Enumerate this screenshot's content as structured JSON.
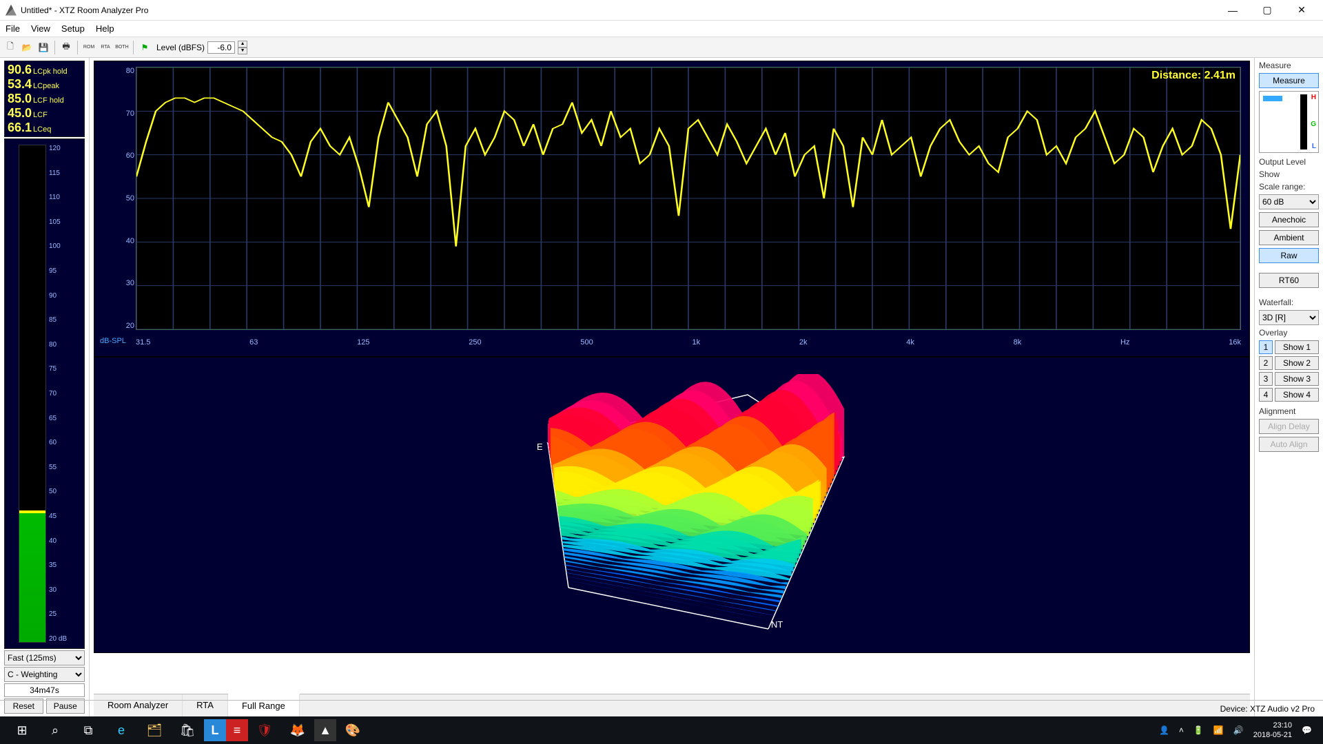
{
  "window": {
    "title": "Untitled* - XTZ Room Analyzer Pro"
  },
  "menu": {
    "items": [
      "File",
      "View",
      "Setup",
      "Help"
    ]
  },
  "toolbar": {
    "buttons": [
      "new",
      "open",
      "save",
      "print",
      "rom",
      "rta",
      "both",
      "flag"
    ],
    "rom": "ROM",
    "rta": "RTA",
    "both": "BOTH",
    "level_label": "Level (dBFS)",
    "level_value": "-6.0"
  },
  "readouts": [
    {
      "val": "90.6",
      "unit": "LCpk hold"
    },
    {
      "val": "53.4",
      "unit": "LCpeak"
    },
    {
      "val": "85.0",
      "unit": "LCF hold"
    },
    {
      "val": "45.0",
      "unit": "LCF"
    },
    {
      "val": "66.1",
      "unit": "LCeq"
    }
  ],
  "meter": {
    "ticks": [
      "120",
      "115",
      "110",
      "105",
      "100",
      "95",
      "90",
      "85",
      "80",
      "75",
      "70",
      "65",
      "60",
      "55",
      "50",
      "45",
      "40",
      "35",
      "30",
      "25",
      "20 dB"
    ],
    "green_pct": 26,
    "yellow_bottom_pct": 26
  },
  "left_controls": {
    "speed": "Fast (125ms)",
    "weighting": "C - Weighting",
    "elapsed": "34m47s",
    "reset": "Reset",
    "pause": "Pause"
  },
  "chart1": {
    "yticks": [
      "80",
      "70",
      "60",
      "50",
      "40",
      "30",
      "20"
    ],
    "xticks": [
      "31.5",
      "63",
      "125",
      "250",
      "500",
      "1k",
      "2k",
      "4k",
      "8k",
      "Hz",
      "16k"
    ],
    "dbspl": "dB-SPL",
    "distance_label": "Distance: 2.41m",
    "ylim": [
      20,
      80
    ],
    "line_color": "#ffff22",
    "background": "#000000",
    "grid_color": "#2a3a6a",
    "data_y": [
      55,
      63,
      70,
      72,
      73,
      73,
      72,
      73,
      73,
      72,
      71,
      70,
      68,
      66,
      64,
      63,
      60,
      55,
      63,
      66,
      62,
      60,
      64,
      57,
      48,
      64,
      72,
      68,
      64,
      55,
      67,
      70,
      62,
      39,
      62,
      66,
      60,
      64,
      70,
      68,
      62,
      67,
      60,
      66,
      67,
      72,
      65,
      68,
      62,
      70,
      64,
      66,
      58,
      60,
      66,
      62,
      46,
      66,
      68,
      64,
      60,
      67,
      63,
      58,
      62,
      66,
      60,
      65,
      55,
      60,
      62,
      50,
      66,
      62,
      48,
      64,
      60,
      68,
      60,
      62,
      64,
      55,
      62,
      66,
      68,
      63,
      60,
      62,
      58,
      56,
      64,
      66,
      70,
      68,
      60,
      62,
      58,
      64,
      66,
      70,
      64,
      58,
      60,
      66,
      64,
      56,
      62,
      66,
      60,
      62,
      68,
      66,
      60,
      43,
      60
    ]
  },
  "chart2": {
    "background": "#000033",
    "label_e": "E",
    "label_nt": "NT"
  },
  "tabs": {
    "items": [
      "Room Analyzer",
      "RTA",
      "Full Range"
    ],
    "active": 2
  },
  "right": {
    "measure_header": "Measure",
    "measure_btn": "Measure",
    "output_level": "Output Level",
    "show": "Show",
    "scale_range": "Scale range:",
    "scale_value": "60 dB",
    "anechoic": "Anechoic",
    "ambient": "Ambient",
    "raw": "Raw",
    "rt60": "RT60",
    "waterfall_label": "Waterfall:",
    "waterfall_value": "3D [R]",
    "overlay": "Overlay",
    "overlays": [
      {
        "n": "1",
        "s": "Show 1"
      },
      {
        "n": "2",
        "s": "Show 2"
      },
      {
        "n": "3",
        "s": "Show 3"
      },
      {
        "n": "4",
        "s": "Show 4"
      }
    ],
    "alignment": "Alignment",
    "align_delay": "Align Delay",
    "auto_align": "Auto Align"
  },
  "status": {
    "device": "Device: XTZ Audio v2 Pro"
  },
  "taskbar": {
    "time": "23:10",
    "date": "2018-05-21"
  }
}
